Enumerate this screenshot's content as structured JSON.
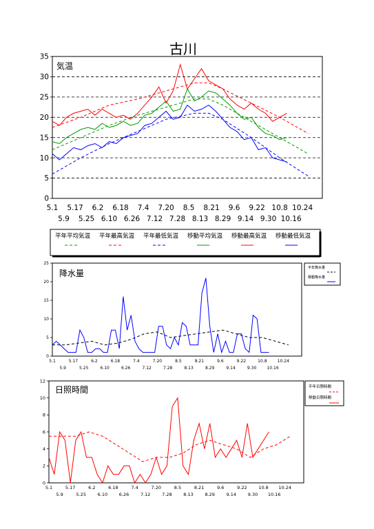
{
  "page": {
    "title": "古川"
  },
  "x_ticks_top": [
    "5.1",
    "5.17",
    "6.2",
    "6.18",
    "7.4",
    "7.20",
    "8.5",
    "8.21",
    "9.6",
    "9.22",
    "10.8",
    "10.24"
  ],
  "x_ticks_bottom": [
    "5.9",
    "5.25",
    "6.10",
    "6.26",
    "7.12",
    "7.28",
    "8.13",
    "8.29",
    "9.14",
    "9.30",
    "10.16"
  ],
  "charts": [
    {
      "id": "temperature",
      "label": "気温",
      "ylim": [
        0,
        35
      ],
      "yticks": [
        0,
        5,
        10,
        15,
        20,
        25,
        30,
        35
      ],
      "grid": "dashed horizontal at 5, 10, 15, 20, 25, 30",
      "legend": [
        {
          "name": "平年平均気温",
          "color": "#009900",
          "dash": true
        },
        {
          "name": "平年最高気温",
          "color": "#ff0000",
          "dash": true
        },
        {
          "name": "平年最低気温",
          "color": "#0000ff",
          "dash": true
        },
        {
          "name": "移動平均気温",
          "color": "#009900",
          "dash": false
        },
        {
          "name": "移動最高気温",
          "color": "#ff0000",
          "dash": false
        },
        {
          "name": "移動最低気温",
          "color": "#0000ff",
          "dash": false
        }
      ]
    },
    {
      "id": "precipitation",
      "label": "降水量",
      "ylim": [
        0,
        25
      ],
      "yticks": [
        0,
        5,
        10,
        15,
        20,
        25
      ],
      "legend": [
        {
          "name": "平年降水量",
          "color": "#000000",
          "dash": true
        },
        {
          "name": "移動降水量",
          "color": "#0000ff",
          "dash": false
        }
      ]
    },
    {
      "id": "sunshine",
      "label": "日照時間",
      "ylim": [
        0,
        12
      ],
      "yticks": [
        0,
        2,
        4,
        6,
        8,
        10,
        12
      ],
      "legend": [
        {
          "name": "平年日照時間",
          "color": "#ff0000",
          "dash": true
        },
        {
          "name": "移動日照時間",
          "color": "#ff0000",
          "dash": false
        }
      ]
    }
  ],
  "chart_data": [
    {
      "type": "line",
      "x_unit": "day index from 5.1",
      "ylim": [
        0,
        35
      ],
      "series": [
        {
          "name": "平年平均気温",
          "color": "#009900",
          "dash": true,
          "x": [
            0,
            20,
            40,
            60,
            80,
            100,
            110,
            120,
            140,
            160,
            180
          ],
          "y": [
            12,
            15,
            18,
            20.5,
            22.5,
            24.5,
            24.5,
            23,
            19,
            15,
            11
          ]
        },
        {
          "name": "平年最高気温",
          "color": "#ff0000",
          "dash": true,
          "x": [
            0,
            20,
            40,
            60,
            80,
            100,
            110,
            120,
            140,
            160,
            180
          ],
          "y": [
            17.5,
            20,
            23,
            24.5,
            26.5,
            28.5,
            28.5,
            27,
            23.5,
            20,
            16
          ]
        },
        {
          "name": "平年最低気温",
          "color": "#0000ff",
          "dash": true,
          "x": [
            0,
            20,
            40,
            60,
            80,
            100,
            110,
            120,
            140,
            160,
            180
          ],
          "y": [
            6,
            10,
            13.5,
            16.5,
            19.5,
            21,
            21,
            19.5,
            15,
            10,
            5.5
          ]
        },
        {
          "name": "移動平均気温",
          "color": "#009900",
          "dash": false,
          "x": [
            0,
            5,
            10,
            15,
            20,
            25,
            30,
            35,
            40,
            45,
            50,
            55,
            60,
            65,
            70,
            75,
            80,
            85,
            90,
            95,
            100,
            105,
            110,
            115,
            120,
            125,
            130,
            135,
            140,
            145,
            150,
            155,
            160,
            165
          ],
          "y": [
            14,
            13.5,
            15,
            16,
            17,
            17.5,
            17,
            18.5,
            17.5,
            18,
            19,
            18,
            18.5,
            20.5,
            21,
            22.5,
            24,
            21.5,
            22,
            27,
            24,
            25,
            26.5,
            26,
            24.5,
            23,
            21,
            19.5,
            20,
            17.5,
            16,
            15.5,
            14.5,
            15
          ]
        },
        {
          "name": "移動最高気温",
          "color": "#ff0000",
          "dash": false,
          "x": [
            0,
            5,
            10,
            15,
            20,
            25,
            30,
            35,
            40,
            45,
            50,
            55,
            60,
            65,
            70,
            75,
            80,
            85,
            90,
            95,
            100,
            105,
            110,
            115,
            120,
            125,
            130,
            135,
            140,
            145,
            150,
            155,
            160,
            165
          ],
          "y": [
            19,
            18,
            20,
            21,
            21.5,
            22,
            20.5,
            22,
            21,
            20,
            20.5,
            19.5,
            21,
            23,
            25,
            27.5,
            23.5,
            26.5,
            33,
            27,
            29.5,
            32,
            29,
            28,
            27,
            24.5,
            23,
            22,
            23.5,
            22,
            21,
            19,
            20,
            21
          ]
        },
        {
          "name": "移動最低気温",
          "color": "#0000ff",
          "dash": false,
          "x": [
            0,
            5,
            10,
            15,
            20,
            25,
            30,
            35,
            40,
            45,
            50,
            55,
            60,
            65,
            70,
            75,
            80,
            85,
            90,
            95,
            100,
            105,
            110,
            115,
            120,
            125,
            130,
            135,
            140,
            145,
            150,
            155,
            160,
            165
          ],
          "y": [
            11,
            9.5,
            11,
            12.5,
            12,
            13,
            13.5,
            12.5,
            14,
            13.5,
            15,
            15.5,
            16,
            18,
            18.5,
            20,
            21.5,
            19.5,
            20,
            23,
            21.5,
            22,
            23,
            21.5,
            19.5,
            17.5,
            16.5,
            14.5,
            15,
            12,
            12.5,
            10,
            9.5,
            9
          ]
        }
      ]
    },
    {
      "type": "line",
      "x_unit": "day index from 5.1",
      "ylim": [
        0,
        25
      ],
      "series": [
        {
          "name": "平年降水量",
          "color": "#000000",
          "dash": true,
          "x": [
            0,
            10,
            20,
            30,
            40,
            50,
            60,
            70,
            80,
            90,
            100,
            110,
            120,
            130,
            140,
            150,
            160,
            170,
            180
          ],
          "y": [
            3,
            3,
            3.5,
            4,
            3,
            3.5,
            4.5,
            6,
            6.5,
            5,
            5.5,
            6,
            6.5,
            7,
            6,
            5,
            5,
            4,
            3
          ]
        },
        {
          "name": "移動降水量",
          "color": "#0000ff",
          "dash": false,
          "x": [
            0,
            3,
            6,
            9,
            12,
            15,
            18,
            21,
            24,
            27,
            30,
            33,
            36,
            39,
            42,
            45,
            48,
            51,
            54,
            57,
            60,
            63,
            66,
            69,
            72,
            75,
            78,
            81,
            84,
            87,
            90,
            93,
            96,
            99,
            102,
            105,
            108,
            111,
            114,
            117,
            120,
            123,
            126,
            129,
            132,
            135,
            138,
            141,
            144,
            147,
            150,
            153,
            156,
            159,
            162,
            165
          ],
          "y": [
            3,
            4,
            3,
            2,
            1,
            1,
            1,
            7,
            5,
            1,
            1,
            2,
            2,
            1,
            1,
            7,
            7,
            2,
            16,
            7,
            11,
            4,
            2,
            1,
            1,
            1,
            1,
            8,
            8,
            3,
            2,
            5,
            3,
            9,
            8,
            3,
            3,
            3,
            17,
            21,
            8,
            1,
            6,
            1,
            4,
            1,
            1,
            6,
            6,
            2,
            1,
            11,
            10,
            1,
            1,
            1
          ]
        }
      ]
    },
    {
      "type": "line",
      "x_unit": "day index from 5.1",
      "ylim": [
        0,
        12
      ],
      "series": [
        {
          "name": "平年日照時間",
          "color": "#ff0000",
          "dash": true,
          "x": [
            0,
            10,
            20,
            30,
            40,
            50,
            60,
            70,
            80,
            90,
            100,
            110,
            120,
            130,
            140,
            150,
            160,
            170,
            180
          ],
          "y": [
            5.5,
            5.5,
            5.5,
            6,
            5.5,
            4.5,
            3.5,
            2.5,
            3,
            3,
            3.5,
            4.5,
            5,
            4.5,
            4,
            3,
            4,
            4.5,
            5.5
          ]
        },
        {
          "name": "移動日照時間",
          "color": "#ff0000",
          "dash": false,
          "x": [
            0,
            4,
            8,
            12,
            16,
            20,
            24,
            28,
            32,
            36,
            40,
            44,
            48,
            52,
            56,
            60,
            64,
            68,
            72,
            76,
            80,
            84,
            88,
            92,
            96,
            100,
            104,
            108,
            112,
            116,
            120,
            124,
            128,
            132,
            136,
            140,
            144,
            148,
            152,
            156,
            160,
            164
          ],
          "y": [
            3,
            1,
            6,
            5,
            0,
            5,
            6,
            3,
            3,
            1,
            0,
            2,
            1,
            1,
            2,
            2,
            0,
            1,
            0,
            1,
            3,
            1,
            2,
            9,
            10,
            2,
            1,
            5,
            7,
            4,
            7,
            3,
            4,
            3,
            4,
            5,
            3,
            7,
            3,
            4,
            5,
            6
          ]
        }
      ]
    }
  ]
}
